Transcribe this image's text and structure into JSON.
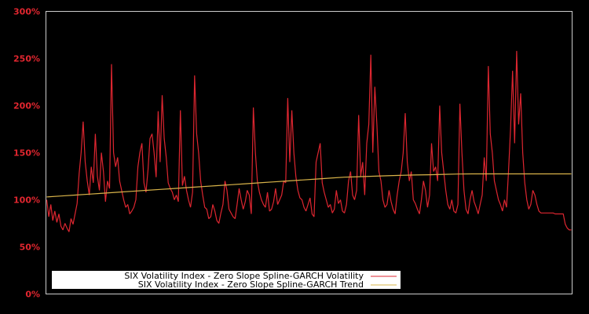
{
  "chart_data": {
    "type": "line",
    "title": "",
    "xlabel": "",
    "ylabel": "",
    "ylim": [
      0,
      300
    ],
    "y_ticks": [
      "0%",
      "50%",
      "100%",
      "150%",
      "200%",
      "250%",
      "300%"
    ],
    "y_tick_values": [
      0,
      50,
      100,
      150,
      200,
      250,
      300
    ],
    "grid": false,
    "legend_position": "lower-left",
    "background": "#000000",
    "axis_label_color": "#e0262f",
    "frame_color": "#cccccc",
    "x_note": "x-axis has no tick labels; values sampled evenly across the plot width",
    "series": [
      {
        "name": "SIX Volatility Index - Zero Slope Spline-GARCH Volatility",
        "color": "#dd2630",
        "values": [
          100,
          82,
          95,
          78,
          88,
          76,
          85,
          72,
          68,
          75,
          70,
          66,
          80,
          74,
          85,
          96,
          128,
          150,
          183,
          140,
          120,
          105,
          135,
          118,
          170,
          125,
          110,
          150,
          130,
          98,
          120,
          112,
          244,
          150,
          135,
          145,
          120,
          110,
          100,
          92,
          95,
          85,
          88,
          92,
          100,
          135,
          150,
          160,
          118,
          108,
          132,
          165,
          170,
          150,
          124,
          194,
          140,
          211,
          165,
          145,
          118,
          112,
          108,
          100,
          105,
          98,
          195,
          115,
          125,
          110,
          100,
          92,
          108,
          232,
          170,
          150,
          120,
          105,
          92,
          90,
          80,
          82,
          95,
          88,
          78,
          75,
          86,
          95,
          120,
          110,
          90,
          86,
          82,
          80,
          95,
          112,
          100,
          90,
          98,
          110,
          105,
          85,
          198,
          150,
          120,
          108,
          100,
          95,
          92,
          108,
          88,
          90,
          98,
          112,
          95,
          100,
          105,
          120,
          118,
          208,
          140,
          195,
          150,
          125,
          110,
          102,
          100,
          92,
          88,
          95,
          102,
          85,
          82,
          140,
          150,
          160,
          118,
          108,
          100,
          92,
          95,
          86,
          90,
          110,
          96,
          100,
          88,
          86,
          95,
          120,
          130,
          105,
          100,
          110,
          190,
          125,
          140,
          105,
          160,
          180,
          254,
          150,
          220,
          180,
          130,
          120,
          100,
          92,
          95,
          110,
          98,
          90,
          85,
          105,
          120,
          130,
          150,
          192,
          140,
          120,
          130,
          100,
          96,
          90,
          85,
          100,
          120,
          110,
          92,
          105,
          160,
          130,
          135,
          120,
          200,
          150,
          130,
          110,
          95,
          90,
          100,
          88,
          86,
          95,
          202,
          150,
          110,
          90,
          85,
          100,
          110,
          98,
          92,
          85,
          95,
          105,
          145,
          120,
          242,
          170,
          150,
          120,
          110,
          100,
          95,
          88,
          100,
          92,
          130,
          175,
          237,
          160,
          258,
          180,
          213,
          150,
          118,
          100,
          90,
          95,
          110,
          105,
          95,
          88,
          86,
          86,
          86,
          86,
          86,
          86,
          86,
          85,
          85,
          85,
          85,
          85,
          74,
          70,
          68,
          68
        ]
      },
      {
        "name": "SIX Volatility Index - Zero Slope Spline-GARCH Trend",
        "color": "#d9b44a",
        "values": [
          103,
          104,
          105,
          106,
          107,
          108,
          109,
          110,
          111,
          112,
          113,
          114,
          115,
          116,
          117,
          118,
          119,
          120,
          121,
          122,
          123,
          124,
          124.5,
          125,
          125.5,
          126,
          126.3,
          126.6,
          127,
          127.3,
          127.5,
          127.5,
          127.5,
          127.5,
          127.5,
          127.5,
          127.5,
          127.5
        ]
      }
    ]
  },
  "legend": {
    "items": [
      {
        "label": "SIX Volatility Index - Zero Slope Spline-GARCH Volatility",
        "color": "#dd2630"
      },
      {
        "label": "SIX Volatility Index - Zero Slope Spline-GARCH Trend",
        "color": "#d9b44a"
      }
    ]
  }
}
